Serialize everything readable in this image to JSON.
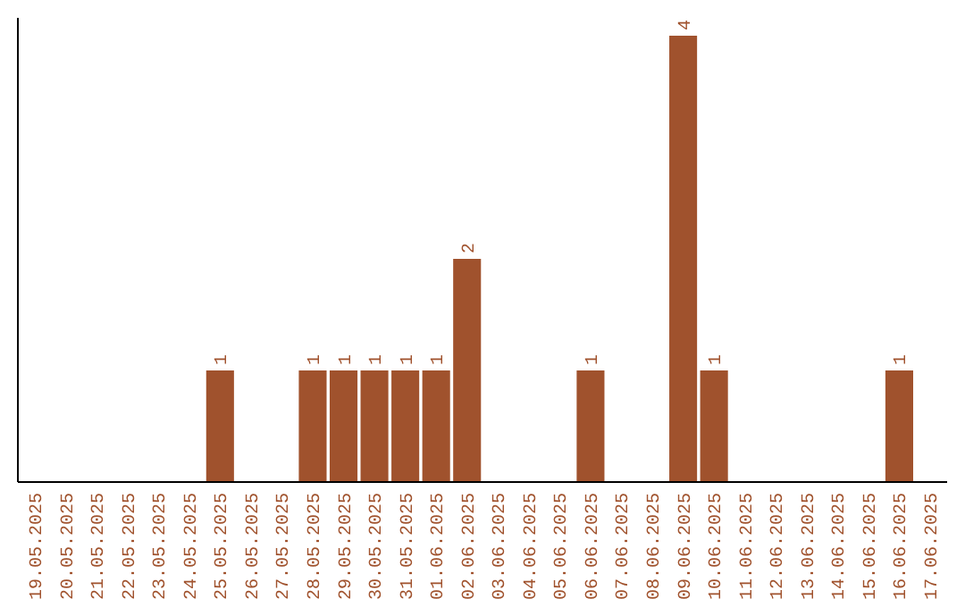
{
  "chart_data": {
    "type": "bar",
    "categories": [
      "19.05.2025",
      "20.05.2025",
      "21.05.2025",
      "22.05.2025",
      "23.05.2025",
      "24.05.2025",
      "25.05.2025",
      "26.05.2025",
      "27.05.2025",
      "28.05.2025",
      "29.05.2025",
      "30.05.2025",
      "31.05.2025",
      "01.06.2025",
      "02.06.2025",
      "03.06.2025",
      "04.06.2025",
      "05.06.2025",
      "06.06.2025",
      "07.06.2025",
      "08.06.2025",
      "09.06.2025",
      "10.06.2025",
      "11.06.2025",
      "12.06.2025",
      "13.06.2025",
      "14.06.2025",
      "15.06.2025",
      "16.06.2025",
      "17.06.2025"
    ],
    "values": [
      0,
      0,
      0,
      0,
      0,
      0,
      1,
      0,
      0,
      1,
      1,
      1,
      1,
      1,
      2,
      0,
      0,
      0,
      1,
      0,
      0,
      4,
      1,
      0,
      0,
      0,
      0,
      0,
      1,
      0
    ],
    "value_labels": [
      null,
      null,
      null,
      null,
      null,
      null,
      "1",
      null,
      null,
      "1",
      "1",
      "1",
      "1",
      "1",
      "2",
      null,
      null,
      null,
      "1",
      null,
      null,
      "4",
      "1",
      null,
      null,
      null,
      null,
      null,
      "1",
      null
    ],
    "color": "#a0522d",
    "tick_labels": "x"
  }
}
